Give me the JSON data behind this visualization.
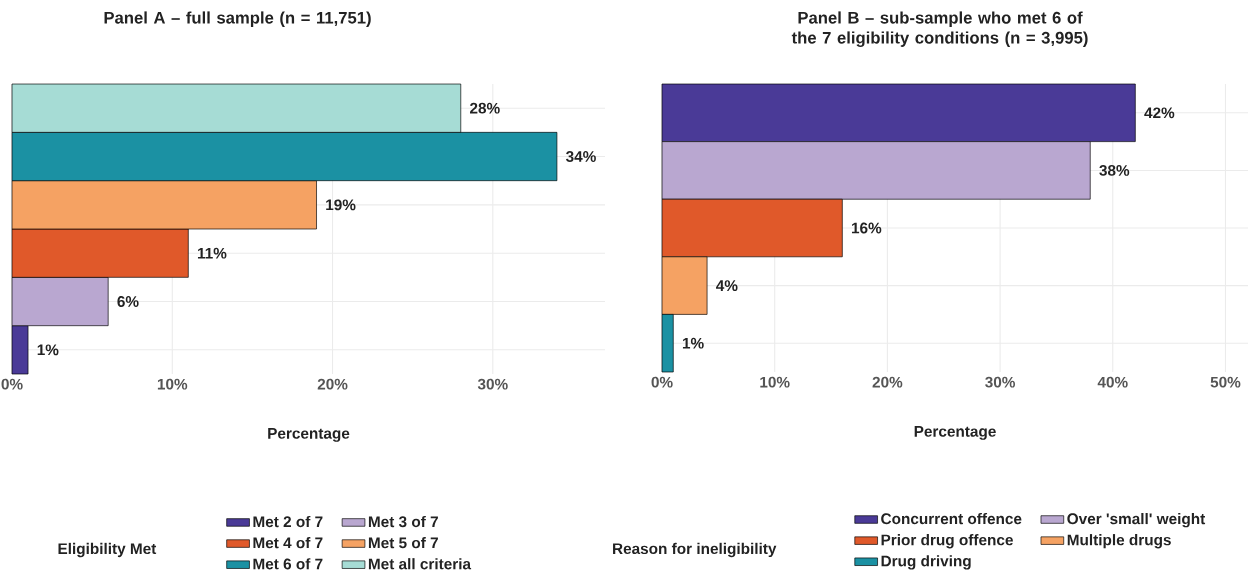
{
  "chart_data": [
    {
      "type": "bar",
      "orientation": "horizontal",
      "title": "Panel A – full sample (n = 11,751)",
      "xlabel": "Percentage",
      "legend_title": "Eligibility Met",
      "categories": [
        null,
        null,
        null,
        null,
        null,
        null
      ],
      "series": [
        {
          "name": "Met 2 of 7",
          "color": "#4a3a97",
          "values": [
            null,
            null,
            null,
            null,
            null,
            1
          ],
          "value_labels": [
            null,
            null,
            null,
            null,
            null,
            "1%"
          ]
        },
        {
          "name": "Met 3 of 7",
          "color": "#b9a7d0",
          "values": [
            null,
            null,
            null,
            null,
            6,
            null
          ],
          "value_labels": [
            null,
            null,
            null,
            null,
            "6%",
            null
          ]
        },
        {
          "name": "Met 4 of 7",
          "color": "#e0592a",
          "values": [
            null,
            null,
            null,
            11,
            null,
            null
          ],
          "value_labels": [
            null,
            null,
            null,
            "11%",
            null,
            null
          ]
        },
        {
          "name": "Met 5 of 7",
          "color": "#f5a263",
          "values": [
            null,
            null,
            19,
            null,
            null,
            null
          ],
          "value_labels": [
            null,
            null,
            "19%",
            null,
            null,
            null
          ]
        },
        {
          "name": "Met 6 of 7",
          "color": "#1b91a3",
          "values": [
            null,
            34,
            null,
            null,
            null,
            null
          ],
          "value_labels": [
            null,
            "34%",
            null,
            null,
            null,
            null
          ]
        },
        {
          "name": "Met all criteria",
          "color": "#a6dcd5",
          "values": [
            28,
            null,
            null,
            null,
            null,
            null
          ],
          "value_labels": [
            "28%",
            null,
            null,
            null,
            null,
            null
          ]
        }
      ],
      "xlim": [
        0,
        37
      ],
      "xticks": [
        {
          "value": 0,
          "label": "0%"
        },
        {
          "value": 10,
          "label": "10%"
        },
        {
          "value": 20,
          "label": "20%"
        },
        {
          "value": 30,
          "label": "30%"
        }
      ],
      "grid": true,
      "legend": "bottom"
    },
    {
      "type": "bar",
      "orientation": "horizontal",
      "title": "Panel B – sub-sample who met 6 of the 7 eligibility conditions (n = 3,995)",
      "xlabel": "Percentage",
      "legend_title": "Reason for ineligibility",
      "categories": [
        null,
        null,
        null,
        null,
        null
      ],
      "series": [
        {
          "name": "Concurrent offence",
          "color": "#4a3a97",
          "values": [
            42,
            null,
            null,
            null,
            null
          ],
          "value_labels": [
            "42%",
            null,
            null,
            null,
            null
          ]
        },
        {
          "name": "Over 'small' weight",
          "color": "#b9a7d0",
          "values": [
            null,
            38,
            null,
            null,
            null
          ],
          "value_labels": [
            null,
            "38%",
            null,
            null,
            null
          ]
        },
        {
          "name": "Prior drug offence",
          "color": "#e0592a",
          "values": [
            null,
            null,
            16,
            null,
            null
          ],
          "value_labels": [
            null,
            null,
            "16%",
            null,
            null
          ]
        },
        {
          "name": "Multiple drugs",
          "color": "#f5a263",
          "values": [
            null,
            null,
            null,
            4,
            null
          ],
          "value_labels": [
            null,
            null,
            null,
            "4%",
            null
          ]
        },
        {
          "name": "Drug driving",
          "color": "#1b91a3",
          "values": [
            null,
            null,
            null,
            null,
            1
          ],
          "value_labels": [
            null,
            null,
            null,
            null,
            "1%"
          ]
        }
      ],
      "xlim": [
        0,
        52
      ],
      "xticks": [
        {
          "value": 0,
          "label": "0%"
        },
        {
          "value": 10,
          "label": "10%"
        },
        {
          "value": 20,
          "label": "20%"
        },
        {
          "value": 30,
          "label": "30%"
        },
        {
          "value": 40,
          "label": "40%"
        },
        {
          "value": 50,
          "label": "50%"
        }
      ],
      "grid": true,
      "legend": "bottom"
    }
  ]
}
